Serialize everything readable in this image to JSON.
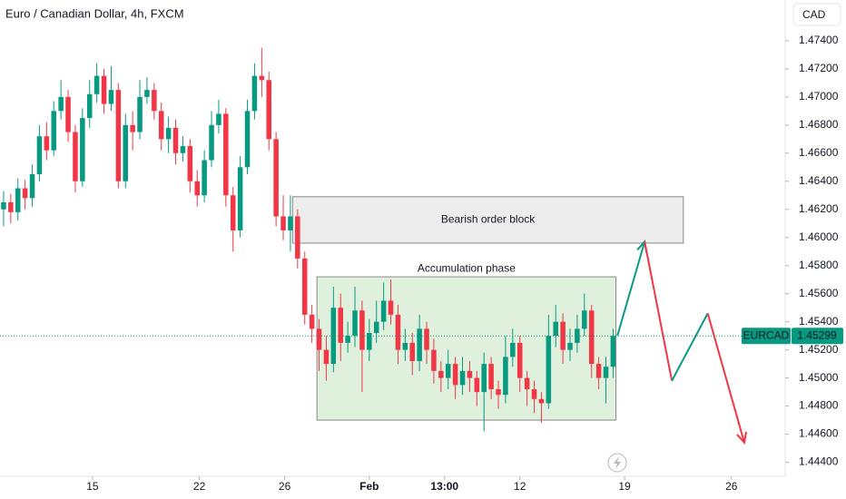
{
  "chart_data": {
    "type": "candlestick",
    "title": "Euro / Canadian Dollar, 4h, FXCM",
    "currency": "CAD",
    "up_color": "#089981",
    "down_color": "#f23645",
    "open": [
      1.462,
      1.4625,
      1.4618,
      1.4635,
      1.4628,
      1.4645,
      1.4672,
      1.4662,
      1.469,
      1.47,
      1.4675,
      1.464,
      1.4685,
      1.4702,
      1.4715,
      1.4695,
      1.4705,
      1.464,
      1.468,
      1.4675,
      1.47,
      1.4705,
      1.469,
      1.467,
      1.4678,
      1.466,
      1.4665,
      1.464,
      1.463,
      1.4655,
      1.468,
      1.4688,
      1.463,
      1.4605,
      1.465,
      1.469,
      1.4715,
      1.4712,
      1.467,
      1.4615,
      1.4605,
      1.4615,
      1.4585,
      1.4545,
      1.4535,
      1.452,
      1.451,
      1.455,
      1.4525,
      1.453,
      1.4548,
      1.452,
      1.4532,
      1.454,
      1.4555,
      1.4545,
      1.452,
      1.4525,
      1.4512,
      1.4535,
      1.452,
      1.4505,
      1.45,
      1.451,
      1.4495,
      1.4505,
      1.45,
      1.449,
      1.451,
      1.4492,
      1.4488,
      1.4515,
      1.4525,
      1.45,
      1.4492,
      1.4485,
      1.4482,
      1.453,
      1.454,
      1.452,
      1.4525,
      1.4535,
      1.4548,
      1.451,
      1.45,
      1.4508
    ],
    "high": [
      1.4633,
      1.4631,
      1.4642,
      1.4641,
      1.4652,
      1.468,
      1.4682,
      1.4697,
      1.4712,
      1.4705,
      1.468,
      1.4692,
      1.4712,
      1.4724,
      1.472,
      1.4722,
      1.471,
      1.4688,
      1.469,
      1.4712,
      1.4714,
      1.471,
      1.4696,
      1.4686,
      1.4684,
      1.4672,
      1.467,
      1.4648,
      1.4662,
      1.469,
      1.4698,
      1.4692,
      1.4636,
      1.4658,
      1.4698,
      1.4724,
      1.4735,
      1.4718,
      1.4675,
      1.463,
      1.463,
      1.462,
      1.459,
      1.4552,
      1.4542,
      1.453,
      1.4565,
      1.456,
      1.454,
      1.4565,
      1.4555,
      1.4542,
      1.4555,
      1.4568,
      1.457,
      1.4552,
      1.4535,
      1.4532,
      1.4545,
      1.454,
      1.4528,
      1.4512,
      1.452,
      1.4515,
      1.4515,
      1.4512,
      1.4505,
      1.4518,
      1.4515,
      1.4498,
      1.453,
      1.4535,
      1.453,
      1.4505,
      1.4498,
      1.449,
      1.4545,
      1.4552,
      1.4546,
      1.4535,
      1.4545,
      1.456,
      1.4552,
      1.4515,
      1.4515,
      1.4535
    ],
    "low": [
      1.4608,
      1.461,
      1.4612,
      1.462,
      1.4622,
      1.464,
      1.4655,
      1.4658,
      1.4684,
      1.4668,
      1.4632,
      1.4636,
      1.4678,
      1.4696,
      1.4688,
      1.469,
      1.4635,
      1.4635,
      1.4662,
      1.467,
      1.4695,
      1.4684,
      1.4662,
      1.466,
      1.4652,
      1.4654,
      1.4632,
      1.4622,
      1.4625,
      1.465,
      1.4674,
      1.4622,
      1.459,
      1.46,
      1.4645,
      1.4684,
      1.47,
      1.4662,
      1.4608,
      1.4598,
      1.459,
      1.4578,
      1.4538,
      1.4525,
      1.4505,
      1.4498,
      1.4504,
      1.4512,
      1.4518,
      1.4522,
      1.449,
      1.4512,
      1.4525,
      1.4534,
      1.4538,
      1.451,
      1.4512,
      1.4502,
      1.4505,
      1.451,
      1.4496,
      1.449,
      1.4492,
      1.4485,
      1.4488,
      1.449,
      1.448,
      1.4462,
      1.4485,
      1.4478,
      1.4482,
      1.4508,
      1.449,
      1.448,
      1.4475,
      1.4468,
      1.4478,
      1.4522,
      1.451,
      1.4512,
      1.4518,
      1.453,
      1.45,
      1.4492,
      1.4482,
      1.45
    ],
    "close": [
      1.4625,
      1.4618,
      1.4635,
      1.4628,
      1.4645,
      1.4672,
      1.4662,
      1.469,
      1.47,
      1.4675,
      1.464,
      1.4685,
      1.4702,
      1.4715,
      1.4695,
      1.4705,
      1.464,
      1.468,
      1.4675,
      1.47,
      1.4705,
      1.469,
      1.467,
      1.4678,
      1.466,
      1.4665,
      1.464,
      1.463,
      1.4655,
      1.468,
      1.4688,
      1.463,
      1.4605,
      1.465,
      1.469,
      1.4715,
      1.4712,
      1.467,
      1.4615,
      1.4605,
      1.4615,
      1.4585,
      1.4545,
      1.4535,
      1.452,
      1.451,
      1.455,
      1.4525,
      1.453,
      1.4548,
      1.452,
      1.4532,
      1.454,
      1.4555,
      1.4545,
      1.452,
      1.4525,
      1.4512,
      1.4535,
      1.452,
      1.4505,
      1.45,
      1.451,
      1.4495,
      1.4505,
      1.45,
      1.449,
      1.451,
      1.4492,
      1.4488,
      1.4515,
      1.4525,
      1.45,
      1.4492,
      1.4485,
      1.4482,
      1.453,
      1.454,
      1.452,
      1.4525,
      1.4535,
      1.4548,
      1.451,
      1.45,
      1.4508,
      1.453
    ],
    "xlim": [
      -0.5,
      109
    ],
    "xticks": [
      {
        "value": 12.4,
        "label": "15"
      },
      {
        "value": 27.3,
        "label": "22"
      },
      {
        "value": 39.2,
        "label": "26"
      },
      {
        "value": 51,
        "label": "Feb"
      },
      {
        "value": 61.5,
        "label": "13:00"
      },
      {
        "value": 72,
        "label": "12"
      },
      {
        "value": 86.6,
        "label": "19"
      },
      {
        "value": 101.5,
        "label": "26"
      }
    ],
    "ylim": [
      1.443,
      1.4769
    ],
    "yticks": [
      {
        "value": 1.444,
        "label": "1.44400"
      },
      {
        "value": 1.446,
        "label": "1.44600"
      },
      {
        "value": 1.448,
        "label": "1.44800"
      },
      {
        "value": 1.45,
        "label": "1.45000"
      },
      {
        "value": 1.452,
        "label": "1.45200"
      },
      {
        "value": 1.454,
        "label": "1.45400"
      },
      {
        "value": 1.456,
        "label": "1.45600"
      },
      {
        "value": 1.458,
        "label": "1.45800"
      },
      {
        "value": 1.46,
        "label": "1.46000"
      },
      {
        "value": 1.462,
        "label": "1.46200"
      },
      {
        "value": 1.464,
        "label": "1.46400"
      },
      {
        "value": 1.466,
        "label": "1.46600"
      },
      {
        "value": 1.468,
        "label": "1.46800"
      },
      {
        "value": 1.47,
        "label": "1.47000"
      },
      {
        "value": 1.472,
        "label": "1.47200"
      },
      {
        "value": 1.474,
        "label": "1.47400"
      }
    ],
    "last_price": {
      "symbol": "EURCAD",
      "value": 1.45299
    },
    "zones": [
      {
        "label": "Bearish order block",
        "xlim": [
          40.3,
          94.8
        ],
        "ylim": [
          1.4596,
          1.4629
        ],
        "fill": "#ebebeb",
        "stroke": "#888888",
        "label_position": "inside"
      },
      {
        "label": "Accumulation phase",
        "xlim": [
          43.7,
          85.4
        ],
        "ylim": [
          1.447,
          1.4572
        ],
        "fill": "#dcefd9",
        "stroke": "#888888",
        "label_position": "above"
      }
    ],
    "projection": {
      "x": [
        85.6,
        89.4,
        93.2,
        98.2,
        103.3
      ],
      "y": [
        1.453,
        1.4597,
        1.4498,
        1.4546,
        1.4454
      ]
    }
  }
}
